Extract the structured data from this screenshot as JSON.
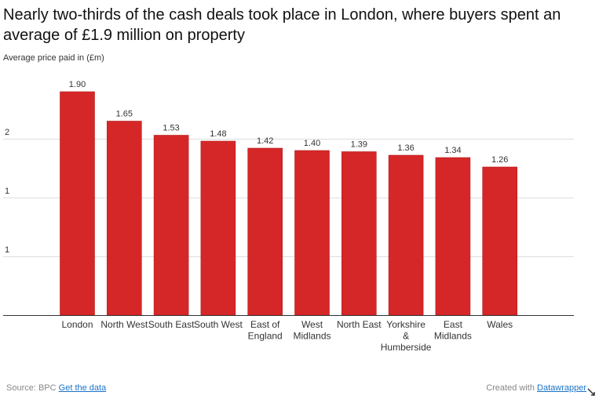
{
  "chart_data": {
    "type": "bar",
    "title": "Nearly two-thirds of the cash deals took place in London, where buyers spent an average of £1.9 million on property",
    "subtitle": "Average price paid in (£m)",
    "categories": [
      [
        "London"
      ],
      [
        "North West"
      ],
      [
        "South East"
      ],
      [
        "South West"
      ],
      [
        "East of",
        "England"
      ],
      [
        "West",
        "Midlands"
      ],
      [
        "North East"
      ],
      [
        "Yorkshire",
        "&",
        "Humberside"
      ],
      [
        "East",
        "Midlands"
      ],
      [
        "Wales"
      ]
    ],
    "values": [
      1.9,
      1.65,
      1.53,
      1.48,
      1.42,
      1.4,
      1.39,
      1.36,
      1.34,
      1.26
    ],
    "value_labels": [
      "1.90",
      "1.65",
      "1.53",
      "1.48",
      "1.42",
      "1.40",
      "1.39",
      "1.36",
      "1.34",
      "1.26"
    ],
    "yticks": [
      {
        "value": 0.5,
        "label": "1"
      },
      {
        "value": 1.0,
        "label": "1"
      },
      {
        "value": 1.5,
        "label": "2"
      }
    ],
    "ylim": [
      0,
      2
    ],
    "grid": true,
    "bar_color": "#d62728"
  },
  "footer": {
    "source_prefix": "Source: BPC",
    "source_link": "Get the data",
    "credit_prefix": "Created with",
    "credit_link": "Datawrapper"
  }
}
